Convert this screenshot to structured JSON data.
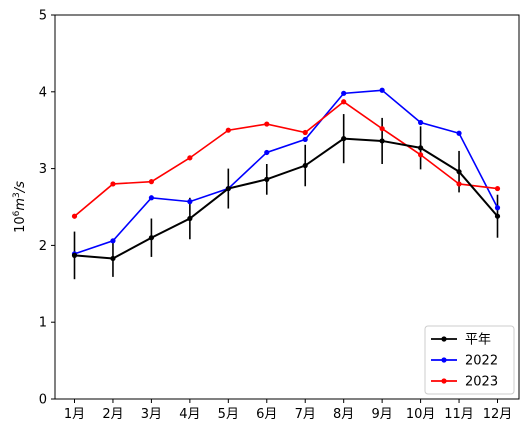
{
  "chart_data": {
    "type": "line",
    "title": "",
    "xlabel": "",
    "ylabel": "10^6 m^3/s",
    "ylabel_parts": {
      "base": "10",
      "exp": "6",
      "mid": "m",
      "exp2": "3",
      "tail": "/s"
    },
    "categories": [
      "1月",
      "2月",
      "3月",
      "4月",
      "5月",
      "6月",
      "7月",
      "8月",
      "9月",
      "10月",
      "11月",
      "12月"
    ],
    "ylim": [
      0,
      5
    ],
    "yticks": [
      "0",
      "1",
      "2",
      "3",
      "4",
      "5"
    ],
    "grid": false,
    "legend_position": "lower-right",
    "series": [
      {
        "name": "平年",
        "color": "#000000",
        "values": [
          1.87,
          1.83,
          2.1,
          2.35,
          2.74,
          2.86,
          3.04,
          3.39,
          3.36,
          3.27,
          2.96,
          2.38
        ],
        "error": [
          0.31,
          0.24,
          0.25,
          0.27,
          0.26,
          0.2,
          0.27,
          0.32,
          0.3,
          0.28,
          0.27,
          0.28
        ]
      },
      {
        "name": "2022",
        "color": "#0000ff",
        "values": [
          1.89,
          2.06,
          2.62,
          2.57,
          2.74,
          3.21,
          3.38,
          3.98,
          4.02,
          3.6,
          3.46,
          2.49
        ]
      },
      {
        "name": "2023",
        "color": "#ff0000",
        "values": [
          2.38,
          2.8,
          2.83,
          3.14,
          3.5,
          3.58,
          3.47,
          3.87,
          3.52,
          3.18,
          2.8,
          2.74
        ]
      }
    ]
  }
}
